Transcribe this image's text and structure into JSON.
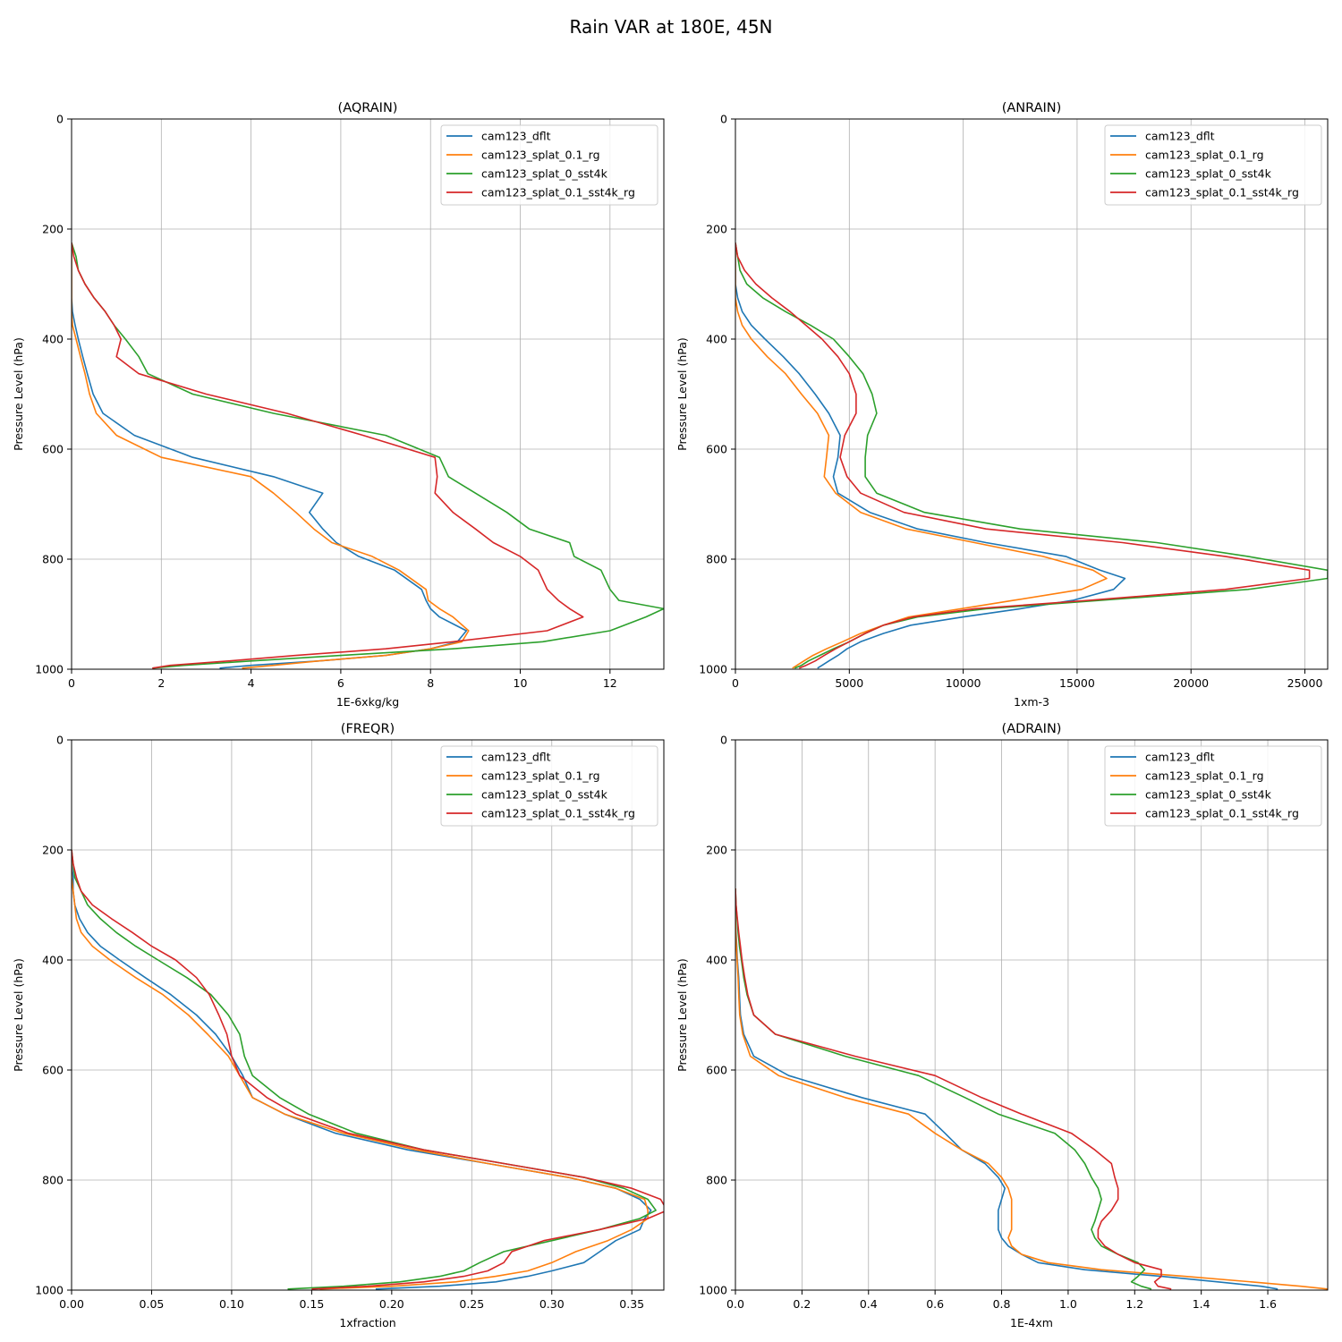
{
  "figure": {
    "title": "Rain VAR at 180E, 45N"
  },
  "series_colors": {
    "cam123_dflt": "#1f77b4",
    "cam123_splat_0.1_rg": "#ff7f0e",
    "cam123_splat_0_sst4k": "#2ca02c",
    "cam123_splat_0.1_sst4k_rg": "#d62728"
  },
  "chart_data": [
    {
      "type": "line",
      "title": "(AQRAIN)",
      "xlabel": "1E-6xkg/kg",
      "ylabel": "Pressure Level (hPa)",
      "xlim": [
        0,
        13.2
      ],
      "ylim": [
        1000,
        0
      ],
      "xticks": [
        0,
        2,
        4,
        6,
        8,
        10,
        12
      ],
      "xtick_labels": [
        "0",
        "2",
        "4",
        "6",
        "8",
        "10",
        "12"
      ],
      "yticks": [
        0,
        200,
        400,
        600,
        800,
        1000
      ],
      "ytick_labels": [
        "0",
        "200",
        "400",
        "600",
        "800",
        "1000"
      ],
      "grid": true,
      "legend": "upper right",
      "y": [
        225,
        250,
        275,
        300,
        325,
        350,
        375,
        400,
        432,
        463,
        500,
        535,
        575,
        615,
        650,
        680,
        715,
        745,
        770,
        795,
        820,
        855,
        875,
        890,
        905,
        930,
        950,
        963,
        975,
        985,
        993,
        998
      ],
      "series": [
        {
          "name": "cam123_dflt",
          "x": [
            0,
            0,
            0,
            0,
            0,
            0.02,
            0.08,
            0.15,
            0.25,
            0.35,
            0.48,
            0.7,
            1.4,
            2.7,
            4.5,
            5.6,
            5.3,
            5.6,
            5.9,
            6.4,
            7.2,
            7.8,
            7.9,
            8.0,
            8.2,
            8.8,
            8.6,
            8.0,
            7.0,
            5.5,
            4.0,
            3.3
          ]
        },
        {
          "name": "cam123_splat_0.1_rg",
          "x": [
            0,
            0,
            0,
            0,
            0,
            0,
            0.02,
            0.1,
            0.2,
            0.3,
            0.4,
            0.55,
            1.0,
            2.0,
            4.0,
            4.5,
            5.0,
            5.4,
            5.8,
            6.7,
            7.3,
            7.9,
            7.95,
            8.2,
            8.5,
            8.85,
            8.7,
            8.0,
            7.0,
            5.5,
            4.5,
            3.8
          ]
        },
        {
          "name": "cam123_splat_0_sst4k",
          "x": [
            0,
            0.1,
            0.15,
            0.3,
            0.5,
            0.75,
            0.95,
            1.2,
            1.5,
            1.7,
            2.7,
            4.5,
            7.0,
            8.2,
            8.4,
            9.0,
            9.7,
            10.2,
            11.1,
            11.2,
            11.8,
            12.0,
            12.2,
            13.2,
            12.8,
            12.0,
            10.5,
            8.5,
            6.0,
            4.0,
            2.5,
            1.8
          ]
        },
        {
          "name": "cam123_splat_0.1_sst4k_rg",
          "x": [
            0,
            0.05,
            0.15,
            0.3,
            0.5,
            0.75,
            0.95,
            1.1,
            1.0,
            1.5,
            3.0,
            4.8,
            6.5,
            8.1,
            8.15,
            8.1,
            8.5,
            9.0,
            9.4,
            10.0,
            10.4,
            10.6,
            10.85,
            11.1,
            11.4,
            10.6,
            8.5,
            7.0,
            5.0,
            3.5,
            2.2,
            1.8
          ]
        }
      ]
    },
    {
      "type": "line",
      "title": "(ANRAIN)",
      "xlabel": "1xm-3",
      "ylabel": "Pressure Level (hPa)",
      "xlim": [
        0,
        26000
      ],
      "ylim": [
        1000,
        0
      ],
      "xticks": [
        0,
        5000,
        10000,
        15000,
        20000,
        25000
      ],
      "xtick_labels": [
        "0",
        "5000",
        "10000",
        "15000",
        "20000",
        "25000"
      ],
      "yticks": [
        0,
        200,
        400,
        600,
        800,
        1000
      ],
      "ytick_labels": [
        "0",
        "200",
        "400",
        "600",
        "800",
        "1000"
      ],
      "grid": true,
      "legend": "upper right",
      "y": [
        225,
        250,
        275,
        300,
        325,
        350,
        375,
        400,
        432,
        463,
        500,
        535,
        575,
        615,
        650,
        680,
        715,
        745,
        770,
        795,
        820,
        835,
        855,
        875,
        890,
        905,
        920,
        935,
        950,
        963,
        975,
        985,
        993,
        998
      ],
      "series": [
        {
          "name": "cam123_dflt",
          "x": [
            0,
            0,
            0,
            0,
            100,
            300,
            700,
            1300,
            2100,
            2800,
            3500,
            4100,
            4600,
            4500,
            4300,
            4500,
            5900,
            8000,
            11000,
            14500,
            16000,
            17100,
            16600,
            14800,
            12500,
            10000,
            7700,
            6500,
            5500,
            4900,
            4500,
            4100,
            3800,
            3600
          ]
        },
        {
          "name": "cam123_splat_0.1_rg",
          "x": [
            0,
            0,
            0,
            0,
            0,
            100,
            300,
            700,
            1400,
            2200,
            2900,
            3600,
            4100,
            4000,
            3900,
            4400,
            5500,
            7500,
            10500,
            13500,
            15700,
            16300,
            15200,
            12200,
            9900,
            7600,
            6500,
            5500,
            4700,
            4000,
            3400,
            3000,
            2700,
            2500
          ]
        },
        {
          "name": "cam123_splat_0_sst4k",
          "x": [
            0,
            100,
            200,
            500,
            1200,
            2200,
            3300,
            4300,
            5000,
            5600,
            6000,
            6200,
            5800,
            5700,
            5700,
            6200,
            8300,
            12500,
            18500,
            22500,
            26000,
            26000,
            22500,
            16000,
            11000,
            8000,
            6500,
            5700,
            5000,
            4300,
            3700,
            3200,
            2900,
            2600
          ]
        },
        {
          "name": "cam123_splat_0.1_sst4k_rg",
          "x": [
            0,
            100,
            400,
            900,
            1600,
            2400,
            3100,
            3800,
            4500,
            5000,
            5300,
            5300,
            4800,
            4600,
            4900,
            5500,
            7400,
            11000,
            17000,
            21500,
            25200,
            25200,
            21500,
            15500,
            10500,
            7800,
            6500,
            5700,
            5000,
            4400,
            3900,
            3500,
            3100,
            2800
          ]
        }
      ]
    },
    {
      "type": "line",
      "title": "(FREQR)",
      "xlabel": "1xfraction",
      "ylabel": "Pressure Level (hPa)",
      "xlim": [
        0,
        0.37
      ],
      "ylim": [
        1000,
        0
      ],
      "xticks": [
        0,
        0.05,
        0.1,
        0.15,
        0.2,
        0.25,
        0.3,
        0.35
      ],
      "xtick_labels": [
        "0.00",
        "0.05",
        "0.10",
        "0.15",
        "0.20",
        "0.25",
        "0.30",
        "0.35"
      ],
      "yticks": [
        0,
        200,
        400,
        600,
        800,
        1000
      ],
      "ytick_labels": [
        "0",
        "200",
        "400",
        "600",
        "800",
        "1000"
      ],
      "grid": true,
      "legend": "upper right",
      "y": [
        200,
        225,
        250,
        275,
        300,
        325,
        350,
        375,
        400,
        432,
        463,
        500,
        535,
        575,
        610,
        650,
        680,
        715,
        745,
        770,
        795,
        815,
        835,
        855,
        870,
        890,
        910,
        930,
        950,
        965,
        975,
        985,
        993,
        998
      ],
      "series": [
        {
          "name": "cam123_dflt",
          "x": [
            0,
            0,
            0.001,
            0.001,
            0.002,
            0.005,
            0.01,
            0.018,
            0.03,
            0.046,
            0.062,
            0.078,
            0.09,
            0.1,
            0.107,
            0.113,
            0.133,
            0.165,
            0.21,
            0.26,
            0.31,
            0.34,
            0.355,
            0.362,
            0.358,
            0.355,
            0.34,
            0.33,
            0.32,
            0.3,
            0.285,
            0.265,
            0.23,
            0.19
          ]
        },
        {
          "name": "cam123_splat_0.1_rg",
          "x": [
            0,
            0,
            0,
            0.001,
            0.002,
            0.003,
            0.006,
            0.013,
            0.024,
            0.04,
            0.057,
            0.073,
            0.085,
            0.098,
            0.105,
            0.113,
            0.133,
            0.17,
            0.215,
            0.26,
            0.31,
            0.34,
            0.358,
            0.36,
            0.36,
            0.35,
            0.335,
            0.315,
            0.3,
            0.285,
            0.265,
            0.24,
            0.2,
            0.155
          ]
        },
        {
          "name": "cam123_splat_0_sst4k",
          "x": [
            0,
            0.001,
            0.002,
            0.006,
            0.01,
            0.018,
            0.028,
            0.04,
            0.054,
            0.072,
            0.087,
            0.098,
            0.105,
            0.108,
            0.113,
            0.13,
            0.148,
            0.178,
            0.22,
            0.27,
            0.32,
            0.345,
            0.36,
            0.365,
            0.355,
            0.33,
            0.3,
            0.27,
            0.255,
            0.245,
            0.23,
            0.205,
            0.17,
            0.135
          ]
        },
        {
          "name": "cam123_splat_0.1_sst4k_rg",
          "x": [
            0,
            0.001,
            0.003,
            0.006,
            0.013,
            0.025,
            0.038,
            0.05,
            0.065,
            0.078,
            0.086,
            0.092,
            0.097,
            0.1,
            0.105,
            0.122,
            0.14,
            0.173,
            0.22,
            0.27,
            0.32,
            0.35,
            0.368,
            0.372,
            0.36,
            0.33,
            0.295,
            0.275,
            0.27,
            0.26,
            0.245,
            0.22,
            0.185,
            0.15
          ]
        }
      ]
    },
    {
      "type": "line",
      "title": "(ADRAIN)",
      "xlabel": "1E-4xm",
      "ylabel": "Pressure Level (hPa)",
      "xlim": [
        0,
        1.78
      ],
      "ylim": [
        1000,
        0
      ],
      "xticks": [
        0,
        0.2,
        0.4,
        0.6,
        0.8,
        1.0,
        1.2,
        1.4,
        1.6
      ],
      "xtick_labels": [
        "0.0",
        "0.2",
        "0.4",
        "0.6",
        "0.8",
        "1.0",
        "1.2",
        "1.4",
        "1.6"
      ],
      "yticks": [
        0,
        200,
        400,
        600,
        800,
        1000
      ],
      "ytick_labels": [
        "0",
        "200",
        "400",
        "600",
        "800",
        "1000"
      ],
      "grid": true,
      "legend": "upper right",
      "y": [
        270,
        300,
        325,
        350,
        375,
        400,
        432,
        463,
        500,
        535,
        575,
        610,
        650,
        680,
        715,
        745,
        770,
        795,
        815,
        835,
        855,
        875,
        890,
        905,
        920,
        935,
        950,
        963,
        975,
        985,
        993,
        998
      ],
      "series": [
        {
          "name": "cam123_dflt",
          "x": [
            0,
            0,
            0,
            0.002,
            0.004,
            0.006,
            0.01,
            0.012,
            0.015,
            0.025,
            0.055,
            0.16,
            0.38,
            0.57,
            0.63,
            0.68,
            0.75,
            0.79,
            0.81,
            0.8,
            0.79,
            0.79,
            0.79,
            0.8,
            0.82,
            0.86,
            0.91,
            1.05,
            1.28,
            1.45,
            1.58,
            1.63
          ]
        },
        {
          "name": "cam123_splat_0.1_rg",
          "x": [
            0,
            0,
            0,
            0.001,
            0.003,
            0.005,
            0.008,
            0.01,
            0.013,
            0.022,
            0.045,
            0.13,
            0.33,
            0.52,
            0.6,
            0.68,
            0.76,
            0.8,
            0.82,
            0.83,
            0.83,
            0.83,
            0.83,
            0.82,
            0.83,
            0.86,
            0.94,
            1.1,
            1.35,
            1.55,
            1.7,
            1.78
          ]
        },
        {
          "name": "cam123_splat_0_sst4k",
          "x": [
            0,
            0.002,
            0.005,
            0.008,
            0.012,
            0.018,
            0.025,
            0.035,
            0.055,
            0.12,
            0.33,
            0.55,
            0.69,
            0.79,
            0.96,
            1.02,
            1.05,
            1.07,
            1.09,
            1.1,
            1.09,
            1.08,
            1.07,
            1.08,
            1.1,
            1.15,
            1.21,
            1.23,
            1.21,
            1.19,
            1.22,
            1.25
          ]
        },
        {
          "name": "cam123_splat_0.1_sst4k_rg",
          "x": [
            0,
            0.002,
            0.006,
            0.01,
            0.015,
            0.02,
            0.028,
            0.037,
            0.055,
            0.12,
            0.36,
            0.6,
            0.74,
            0.86,
            1.01,
            1.08,
            1.13,
            1.14,
            1.15,
            1.15,
            1.13,
            1.1,
            1.09,
            1.09,
            1.11,
            1.15,
            1.2,
            1.28,
            1.28,
            1.26,
            1.27,
            1.31
          ]
        }
      ]
    }
  ]
}
